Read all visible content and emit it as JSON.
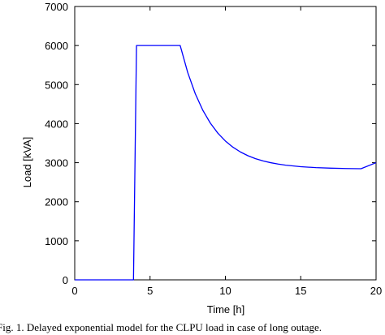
{
  "chart_data": {
    "type": "line",
    "title": "",
    "xlabel": "Time [h]",
    "ylabel": "Load [kVA]",
    "xlim": [
      0,
      20
    ],
    "ylim": [
      0,
      7000
    ],
    "xticks": [
      0,
      5,
      10,
      15,
      20
    ],
    "yticks": [
      0,
      1000,
      2000,
      3000,
      4000,
      5000,
      6000,
      7000
    ],
    "grid": false,
    "legend": "none",
    "series": [
      {
        "color": "#0000ff",
        "x": [
          0,
          3.9,
          4.1,
          7,
          7.5,
          8,
          8.5,
          9,
          9.5,
          10,
          10.5,
          11,
          11.5,
          12,
          12.5,
          13,
          13.5,
          14,
          15,
          16,
          17,
          18,
          19,
          20
        ],
        "y": [
          0,
          0,
          6000,
          6000,
          5308,
          4767,
          4344,
          4014,
          3756,
          3555,
          3397,
          3274,
          3178,
          3103,
          3045,
          3000,
          2965,
          2937,
          2898,
          2874,
          2860,
          2851,
          2845,
          3000
        ]
      }
    ]
  },
  "caption": "Fig. 1.  Delayed exponential model for the CLPU load in case of long outage."
}
